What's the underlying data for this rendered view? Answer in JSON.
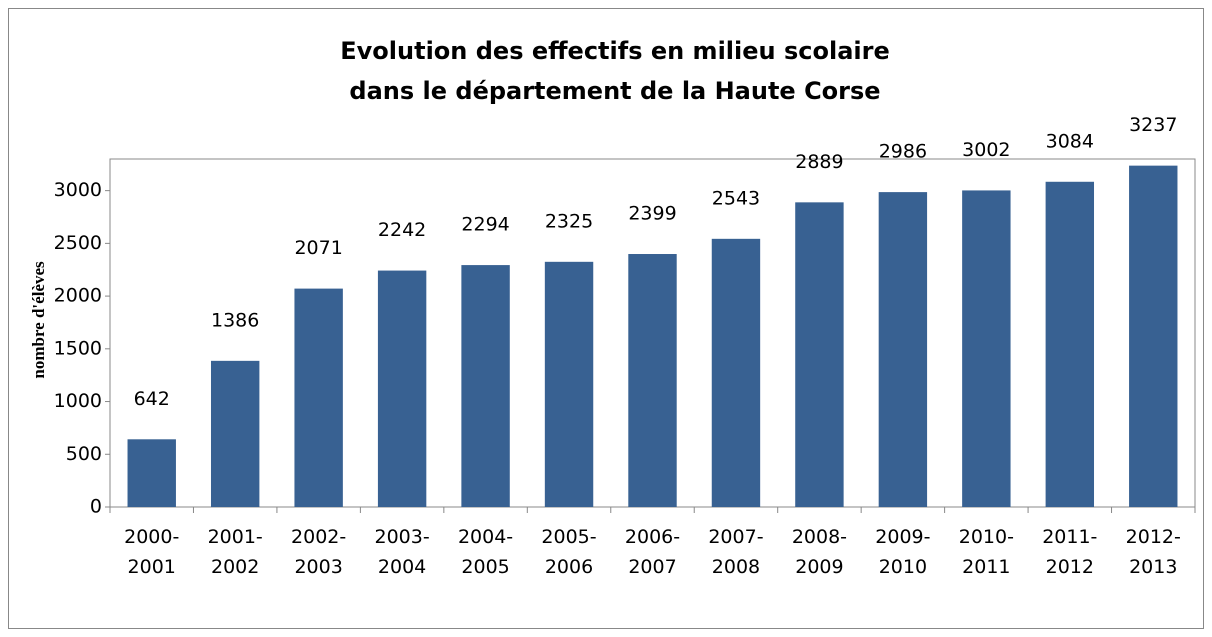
{
  "chart_data": {
    "type": "bar",
    "title": [
      "Evolution des effectifs en milieu scolaire",
      "dans le département de la Haute Corse"
    ],
    "y_label": "nombre d'élèves",
    "categories": [
      "2000-2001",
      "2001-2002",
      "2002-2003",
      "2003-2004",
      "2004-2005",
      "2005-2006",
      "2006-2007",
      "2007-2008",
      "2008-2009",
      "2009-2010",
      "2010-2011",
      "2011-2012",
      "2012-2013"
    ],
    "values": [
      642,
      1386,
      2071,
      2242,
      2294,
      2325,
      2399,
      2543,
      2889,
      2986,
      3002,
      3084,
      3237
    ],
    "color": "#386192",
    "ylim": [
      0,
      3300
    ],
    "yticks": [
      0,
      500,
      1000,
      1500,
      2000,
      2500,
      3000
    ],
    "grid": false
  }
}
